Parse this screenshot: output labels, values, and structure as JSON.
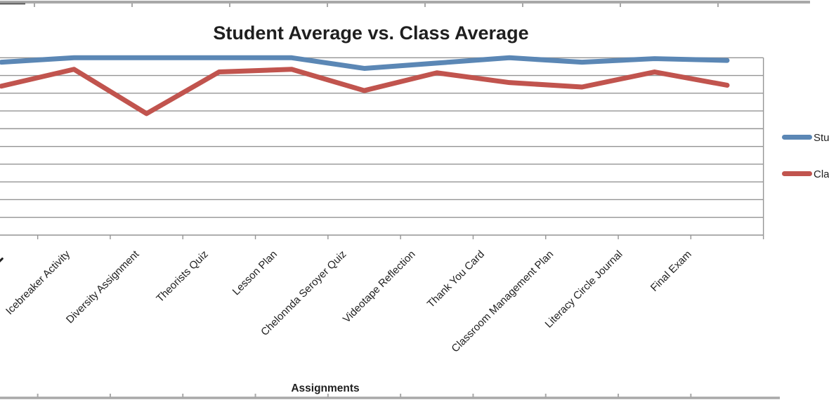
{
  "title": "Student Average vs. Class Average",
  "x_axis": {
    "title": "Assignments"
  },
  "legend": {
    "position": "right",
    "entries": [
      {
        "visible_text": "Stu",
        "color": "#5B87B5"
      },
      {
        "visible_text": "Cla",
        "color": "#C1544E"
      }
    ]
  },
  "chart_data": {
    "type": "line",
    "title": "Student Average vs. Class Average",
    "xlabel": "Assignments",
    "ylabel": "",
    "categories": [
      "",
      "Icebreaker Activity",
      "Diversity Assignment",
      "Theorists Quiz",
      "Lesson Plan",
      "Chelonnda Seroyer Quiz",
      "Videotape Reflection",
      "Thank You Card",
      "Classroom Management Plan",
      "Literacy Circle Journal",
      "Final Exam"
    ],
    "series": [
      {
        "name": "Student Average",
        "legend_text_visible": "Stu",
        "color": "#5B87B5",
        "values": [
          97.5,
          100,
          100,
          100,
          100,
          94,
          97,
          100,
          97.5,
          99.5,
          98.5
        ]
      },
      {
        "name": "Class Average",
        "legend_text_visible": "Cla",
        "color": "#C1544E",
        "values": [
          84,
          93.5,
          68.5,
          92,
          93.5,
          81.5,
          91.5,
          86,
          83.5,
          92,
          84.5
        ]
      }
    ],
    "ylim": [
      0,
      100
    ],
    "gridlines": "horizontal, every 10 units, no y-axis labels visible (cropped)",
    "legend_position": "right",
    "cropped": {
      "left": "y-axis labels and first category label cut off at left edge",
      "right": "legend entry text cut off at right edge",
      "top_bottom": "axis edges of adjacent charts visible at top and bottom"
    }
  },
  "colors": {
    "grid": "#949494",
    "axis": "#949494",
    "text": "#1F1F1F",
    "decor": "#A8A8A8"
  }
}
